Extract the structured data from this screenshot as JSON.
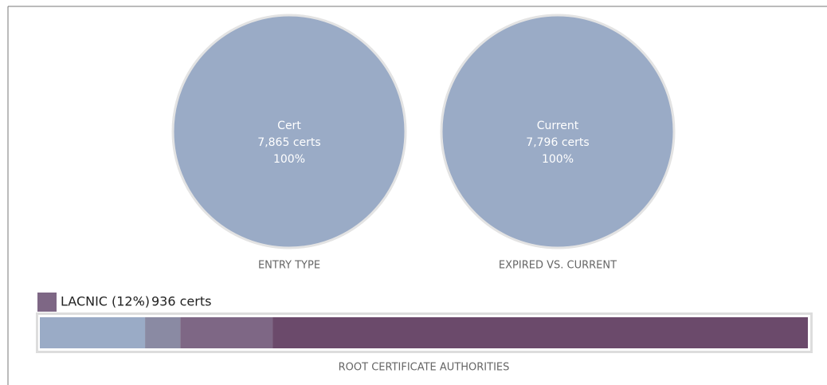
{
  "chart_data": [
    {
      "type": "pie",
      "title": "ENTRY TYPE",
      "categories": [
        "Cert"
      ],
      "values": [
        100
      ],
      "value_labels": [
        "100%"
      ],
      "count_labels": [
        "7,865 certs"
      ],
      "colors": [
        "#9aabc6"
      ]
    },
    {
      "type": "pie",
      "title": "EXPIRED VS. CURRENT",
      "categories": [
        "Current"
      ],
      "values": [
        100
      ],
      "value_labels": [
        "100%"
      ],
      "count_labels": [
        "7,796 certs"
      ],
      "colors": [
        "#9aabc6"
      ]
    },
    {
      "type": "stacked-bar",
      "title": "ROOT CERTIFICATE AUTHORITIES",
      "categories": [
        null,
        null,
        "LACNIC",
        null
      ],
      "values": [
        13.7,
        4.6,
        12,
        69.7
      ],
      "value_labels": [
        null,
        null,
        "(12%)",
        null
      ],
      "count_labels": [
        null,
        null,
        "936 certs",
        null
      ],
      "colors": [
        "#9aabc6",
        "#8a8aa3",
        "#7e6785",
        "#6b4a6b"
      ],
      "xlim": [
        0,
        100
      ],
      "legend_index": 2
    }
  ]
}
